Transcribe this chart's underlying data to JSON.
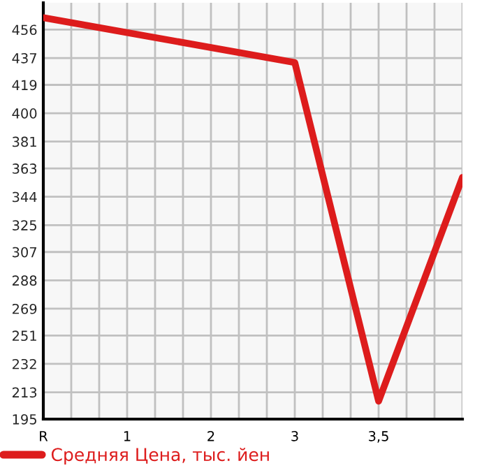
{
  "chart_data": {
    "type": "line",
    "categories": [
      "R",
      null,
      null,
      "1",
      null,
      null,
      "2",
      null,
      null,
      "3",
      null,
      null,
      "3,5",
      null,
      null,
      null
    ],
    "series": [
      {
        "name": "Средняя Цена, тыс. йен",
        "color": "#dd1c1c",
        "values": [
          464,
          null,
          null,
          null,
          null,
          null,
          null,
          null,
          null,
          434,
          null,
          null,
          207,
          null,
          null,
          357
        ]
      }
    ],
    "ylim": [
      195,
      474
    ],
    "yticks": [
      195,
      213,
      232,
      251,
      269,
      288,
      307,
      325,
      344,
      363,
      381,
      400,
      419,
      437,
      456
    ],
    "grid": true,
    "legend": "bottom",
    "marker": "none",
    "line_style": "solid"
  }
}
